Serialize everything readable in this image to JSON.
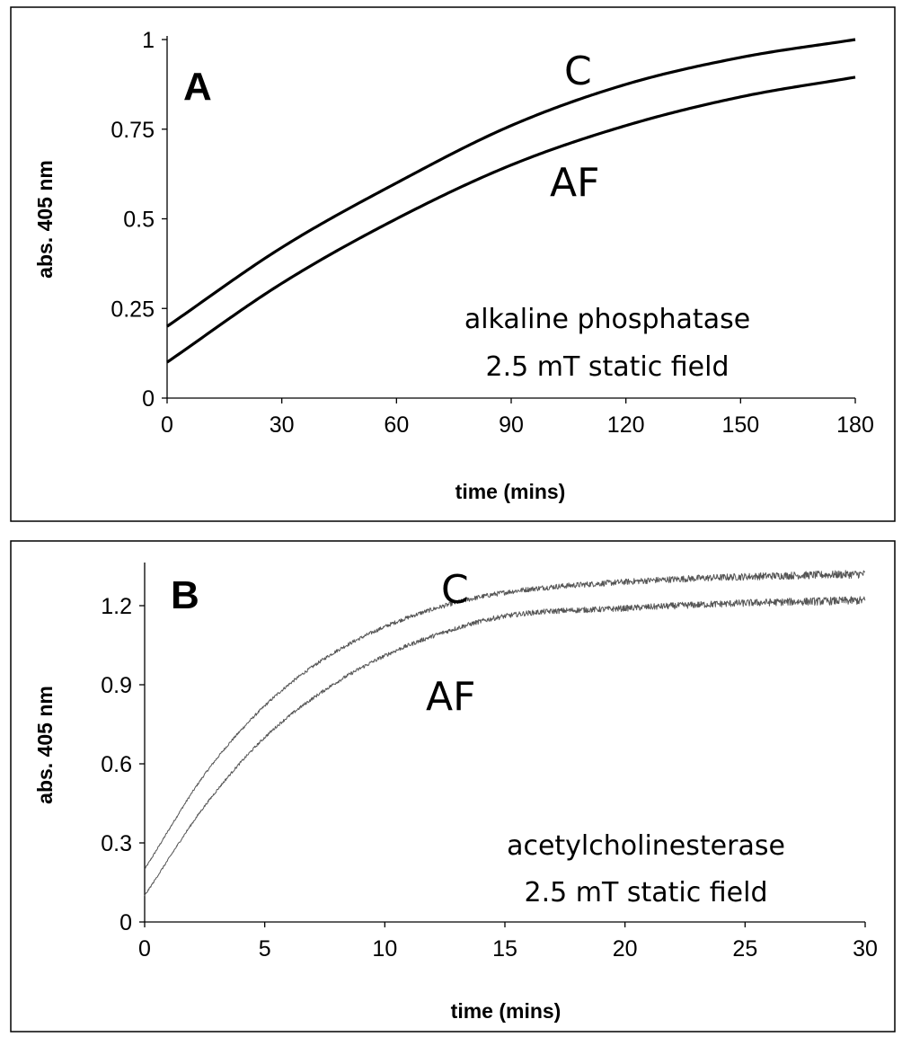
{
  "chart_data": [
    {
      "type": "line",
      "panel": "A",
      "xlabel": "time (mins)",
      "ylabel": "abs. 405 nm",
      "xlim": [
        0,
        180
      ],
      "ylim": [
        0,
        1
      ],
      "xticks": [
        "0",
        "30",
        "60",
        "90",
        "120",
        "150",
        "180"
      ],
      "yticks": [
        "0",
        "0.25",
        "0.5",
        "0.75",
        "1"
      ],
      "annotation": [
        "alkaline phosphatase",
        "2.5 mT static field"
      ],
      "grid": false,
      "series": [
        {
          "name": "C",
          "color": "#000000",
          "x": [
            0,
            30,
            60,
            90,
            120,
            150,
            180
          ],
          "y": [
            0.2,
            0.42,
            0.6,
            0.76,
            0.875,
            0.95,
            1.0
          ]
        },
        {
          "name": "AF",
          "color": "#000000",
          "x": [
            0,
            30,
            60,
            90,
            120,
            150,
            180
          ],
          "y": [
            0.1,
            0.32,
            0.5,
            0.65,
            0.76,
            0.84,
            0.895
          ]
        }
      ]
    },
    {
      "type": "line",
      "panel": "B",
      "xlabel": "time (mins)",
      "ylabel": "abs. 405 nm",
      "xlim": [
        0,
        30
      ],
      "ylim": [
        0,
        1.35
      ],
      "xticks": [
        "0",
        "5",
        "10",
        "15",
        "20",
        "25",
        "30"
      ],
      "yticks": [
        "0",
        "0.3",
        "0.6",
        "0.9",
        "1.2"
      ],
      "annotation": [
        "acetylcholinesterase",
        "2.5 mT static field"
      ],
      "grid": false,
      "series": [
        {
          "name": "C",
          "color": "#555555",
          "x": [
            0,
            2.5,
            5,
            7.5,
            10,
            12.5,
            15,
            20,
            25,
            30
          ],
          "y": [
            0.2,
            0.56,
            0.82,
            1.0,
            1.12,
            1.2,
            1.25,
            1.29,
            1.31,
            1.32
          ]
        },
        {
          "name": "AF",
          "color": "#555555",
          "x": [
            0,
            2.5,
            5,
            7.5,
            10,
            12.5,
            15,
            20,
            25,
            30
          ],
          "y": [
            0.1,
            0.44,
            0.7,
            0.88,
            1.01,
            1.1,
            1.16,
            1.19,
            1.21,
            1.22
          ]
        }
      ]
    }
  ]
}
